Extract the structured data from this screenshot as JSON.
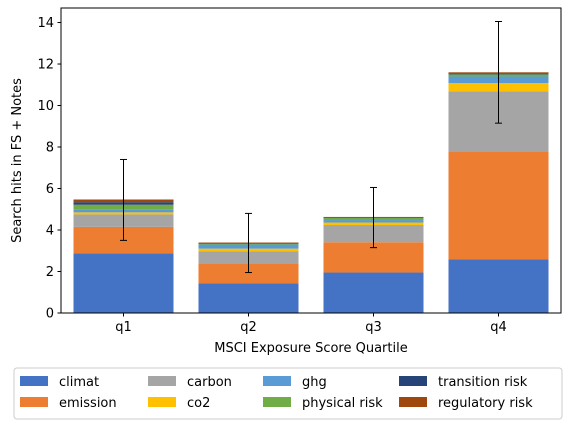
{
  "chart_data": {
    "type": "bar",
    "stacked": true,
    "categories": [
      "q1",
      "q2",
      "q3",
      "q4"
    ],
    "xlabel": "MSCI Exposure Score Quartile",
    "ylabel": "Search hits in FS + Notes",
    "ylim": [
      0,
      14.7
    ],
    "yticks": [
      0,
      2,
      4,
      6,
      8,
      10,
      12,
      14
    ],
    "grid": false,
    "legend_placement": "bottom",
    "series": [
      {
        "name": "climat",
        "color": "#4472c4",
        "values": [
          2.88,
          1.42,
          1.95,
          2.58
        ]
      },
      {
        "name": "emission",
        "color": "#ed7d31",
        "values": [
          1.27,
          0.98,
          1.46,
          5.18
        ]
      },
      {
        "name": "carbon",
        "color": "#a5a5a5",
        "values": [
          0.6,
          0.58,
          0.83,
          2.92
        ]
      },
      {
        "name": "co2",
        "color": "#ffc000",
        "values": [
          0.1,
          0.12,
          0.12,
          0.4
        ]
      },
      {
        "name": "ghg",
        "color": "#5b9bd5",
        "values": [
          0.15,
          0.2,
          0.12,
          0.32
        ]
      },
      {
        "name": "physical risk",
        "color": "#70ad47",
        "values": [
          0.22,
          0.05,
          0.1,
          0.1
        ]
      },
      {
        "name": "transition risk",
        "color": "#264478",
        "values": [
          0.12,
          0.03,
          0.03,
          0.05
        ]
      },
      {
        "name": "regulatory risk",
        "color": "#9e480e",
        "values": [
          0.13,
          0.02,
          0.02,
          0.05
        ]
      }
    ],
    "error_bars": [
      {
        "low": 3.5,
        "high": 7.4
      },
      {
        "low": 1.95,
        "high": 4.8
      },
      {
        "low": 3.15,
        "high": 6.05
      },
      {
        "low": 9.15,
        "high": 14.05
      }
    ]
  }
}
